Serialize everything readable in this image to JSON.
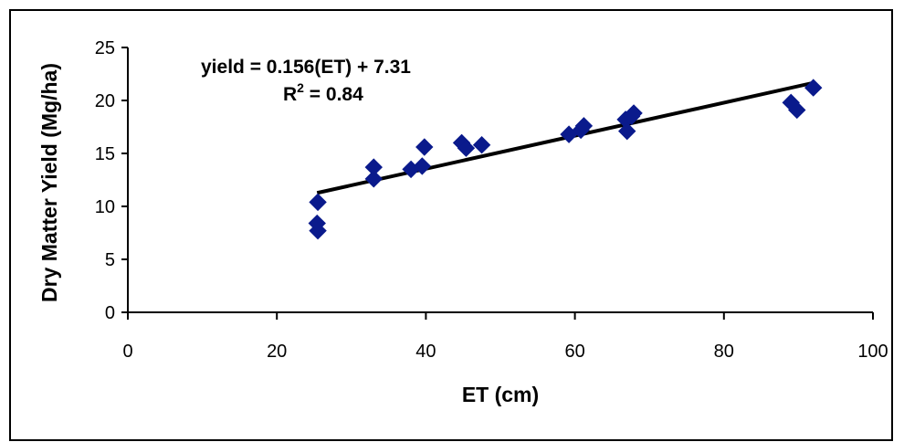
{
  "chart_data": {
    "type": "scatter",
    "xlabel": "ET (cm)",
    "ylabel": "Dry Matter Yield (Mg/ha)",
    "xlim": [
      0,
      100
    ],
    "ylim": [
      0,
      25
    ],
    "x_ticks": [
      0,
      20,
      40,
      60,
      80,
      100
    ],
    "y_ticks": [
      0,
      5,
      10,
      15,
      20,
      25
    ],
    "grid": false,
    "legend": "none",
    "marker_color": "#0a1a8c",
    "trendline_color": "#000000",
    "series": [
      {
        "points": [
          {
            "x": 25.5,
            "y": 10.4
          },
          {
            "x": 25.4,
            "y": 8.4
          },
          {
            "x": 25.5,
            "y": 7.7
          },
          {
            "x": 33.0,
            "y": 13.7
          },
          {
            "x": 33.0,
            "y": 12.6
          },
          {
            "x": 38.0,
            "y": 13.5
          },
          {
            "x": 39.5,
            "y": 13.8
          },
          {
            "x": 39.8,
            "y": 15.6
          },
          {
            "x": 44.8,
            "y": 16.0
          },
          {
            "x": 45.4,
            "y": 15.5
          },
          {
            "x": 47.5,
            "y": 15.8
          },
          {
            "x": 59.2,
            "y": 16.8
          },
          {
            "x": 60.8,
            "y": 17.2
          },
          {
            "x": 61.2,
            "y": 17.6
          },
          {
            "x": 66.8,
            "y": 18.2
          },
          {
            "x": 67.0,
            "y": 17.1
          },
          {
            "x": 67.6,
            "y": 18.5
          },
          {
            "x": 67.9,
            "y": 18.8
          },
          {
            "x": 89.0,
            "y": 19.8
          },
          {
            "x": 89.8,
            "y": 19.1
          },
          {
            "x": 92.0,
            "y": 21.2
          }
        ]
      }
    ],
    "trendline": {
      "slope": 0.156,
      "intercept": 7.31,
      "x_start": 25.4,
      "x_end": 92.0
    },
    "annotation": {
      "equation": "yield = 0.156(ET) + 7.31",
      "r2_prefix": "R",
      "r2_sup": "2",
      "r2_suffix": " = 0.84"
    }
  }
}
